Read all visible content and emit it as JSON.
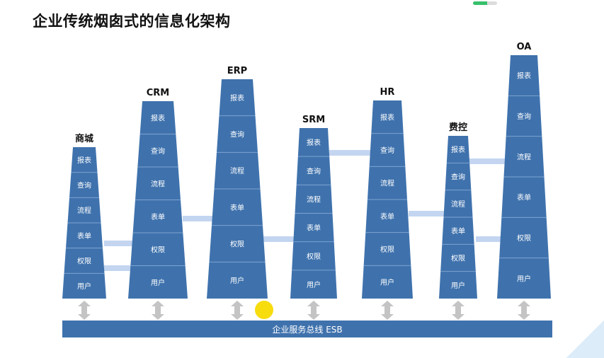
{
  "title": "企业传统烟囱式的信息化架构",
  "progress": 0.6,
  "esb_label": "企业服务总线 ESB",
  "colors": {
    "tower": "#3f72ad",
    "divider": "#7ea3cf",
    "connector": "#c3d5f0",
    "esb": "#3f72ad",
    "arrow": "#c4c4c4",
    "highlight": "#f7dc0e"
  },
  "systems": [
    {
      "name": "商城",
      "layers": [
        "报表",
        "查询",
        "流程",
        "表单",
        "权限",
        "用户"
      ]
    },
    {
      "name": "CRM",
      "layers": [
        "报表",
        "查询",
        "流程",
        "表单",
        "权限",
        "用户"
      ]
    },
    {
      "name": "ERP",
      "layers": [
        "报表",
        "查询",
        "流程",
        "表单",
        "权限",
        "用户"
      ]
    },
    {
      "name": "SRM",
      "layers": [
        "报表",
        "查询",
        "流程",
        "表单",
        "权限",
        "用户"
      ]
    },
    {
      "name": "HR",
      "layers": [
        "报表",
        "查询",
        "流程",
        "表单",
        "权限",
        "用户"
      ]
    },
    {
      "name": "费控",
      "layers": [
        "报表",
        "查询",
        "流程",
        "表单",
        "权限",
        "用户"
      ]
    },
    {
      "name": "OA",
      "layers": [
        "报表",
        "查询",
        "流程",
        "表单",
        "权限",
        "用户"
      ]
    }
  ]
}
